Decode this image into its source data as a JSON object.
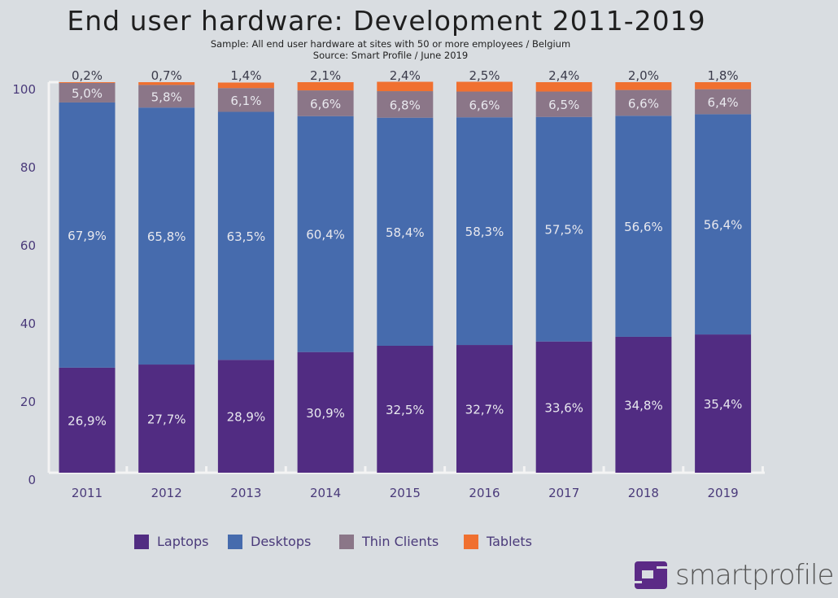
{
  "chart_data": {
    "type": "bar",
    "stacked": true,
    "title": "End user hardware: Development 2011-2019",
    "subtitle": "Sample: All end user hardware at sites with 50 or more employees / Belgium",
    "source": "Source: Smart Profile / June 2019",
    "categories": [
      "2011",
      "2012",
      "2013",
      "2014",
      "2015",
      "2016",
      "2017",
      "2018",
      "2019"
    ],
    "ylim": [
      0,
      100
    ],
    "yticks": [
      0,
      20,
      40,
      60,
      80,
      100
    ],
    "grid": false,
    "legend_position": "bottom",
    "series": [
      {
        "name": "Laptops",
        "color": "#512c82",
        "values": [
          26.9,
          27.7,
          28.9,
          30.9,
          32.5,
          32.7,
          33.6,
          34.8,
          35.4
        ],
        "labels": [
          "26,9%",
          "27,7%",
          "28,9%",
          "30,9%",
          "32,5%",
          "32,7%",
          "33,6%",
          "34,8%",
          "35,4%"
        ]
      },
      {
        "name": "Desktops",
        "color": "#466bad",
        "values": [
          67.9,
          65.8,
          63.5,
          60.4,
          58.4,
          58.3,
          57.5,
          56.6,
          56.4
        ],
        "labels": [
          "67,9%",
          "65,8%",
          "63,5%",
          "60,4%",
          "58,4%",
          "58,3%",
          "57,5%",
          "56,6%",
          "56,4%"
        ]
      },
      {
        "name": "Thin Clients",
        "color": "#8b7688",
        "values": [
          5.0,
          5.8,
          6.1,
          6.6,
          6.8,
          6.6,
          6.5,
          6.6,
          6.4
        ],
        "labels": [
          "5,0%",
          "5,8%",
          "6,1%",
          "6,6%",
          "6,8%",
          "6,6%",
          "6,5%",
          "6,6%",
          "6,4%"
        ]
      },
      {
        "name": "Tablets",
        "color": "#f07030",
        "values": [
          0.2,
          0.7,
          1.4,
          2.1,
          2.4,
          2.5,
          2.4,
          2.0,
          1.8
        ],
        "labels": [
          "0,2%",
          "0,7%",
          "1,4%",
          "2,1%",
          "2,4%",
          "2,5%",
          "2,4%",
          "2,0%",
          "1,8%"
        ]
      }
    ]
  },
  "logo": {
    "text": "smartprofile",
    "color": "#5b2a86"
  }
}
